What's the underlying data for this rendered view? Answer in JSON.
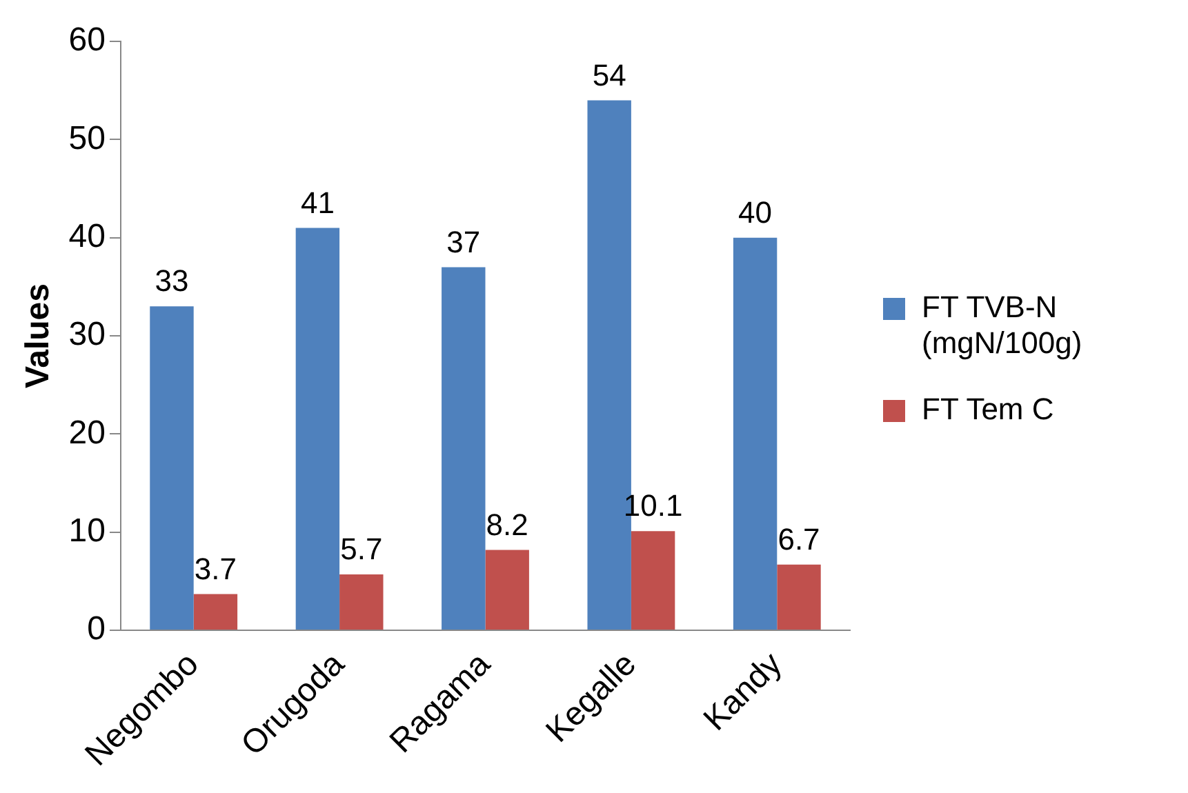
{
  "chart_data": {
    "type": "bar",
    "ylabel": "Values",
    "categories": [
      "Negombo",
      "Orugoda",
      "Ragama",
      "Kegalle",
      "Kandy"
    ],
    "series": [
      {
        "name": "FT TVB-N (mgN/100g)",
        "color": "#4f81bd",
        "values": [
          33,
          41,
          37,
          54,
          40
        ]
      },
      {
        "name": "FT Tem C",
        "color": "#c0504d",
        "values": [
          3.7,
          5.7,
          8.2,
          10.1,
          6.7
        ]
      }
    ],
    "ylim": [
      0,
      60
    ],
    "yticks": [
      0,
      10,
      20,
      30,
      40,
      50,
      60
    ],
    "grid": false,
    "legend": "right",
    "data_labels": true
  }
}
